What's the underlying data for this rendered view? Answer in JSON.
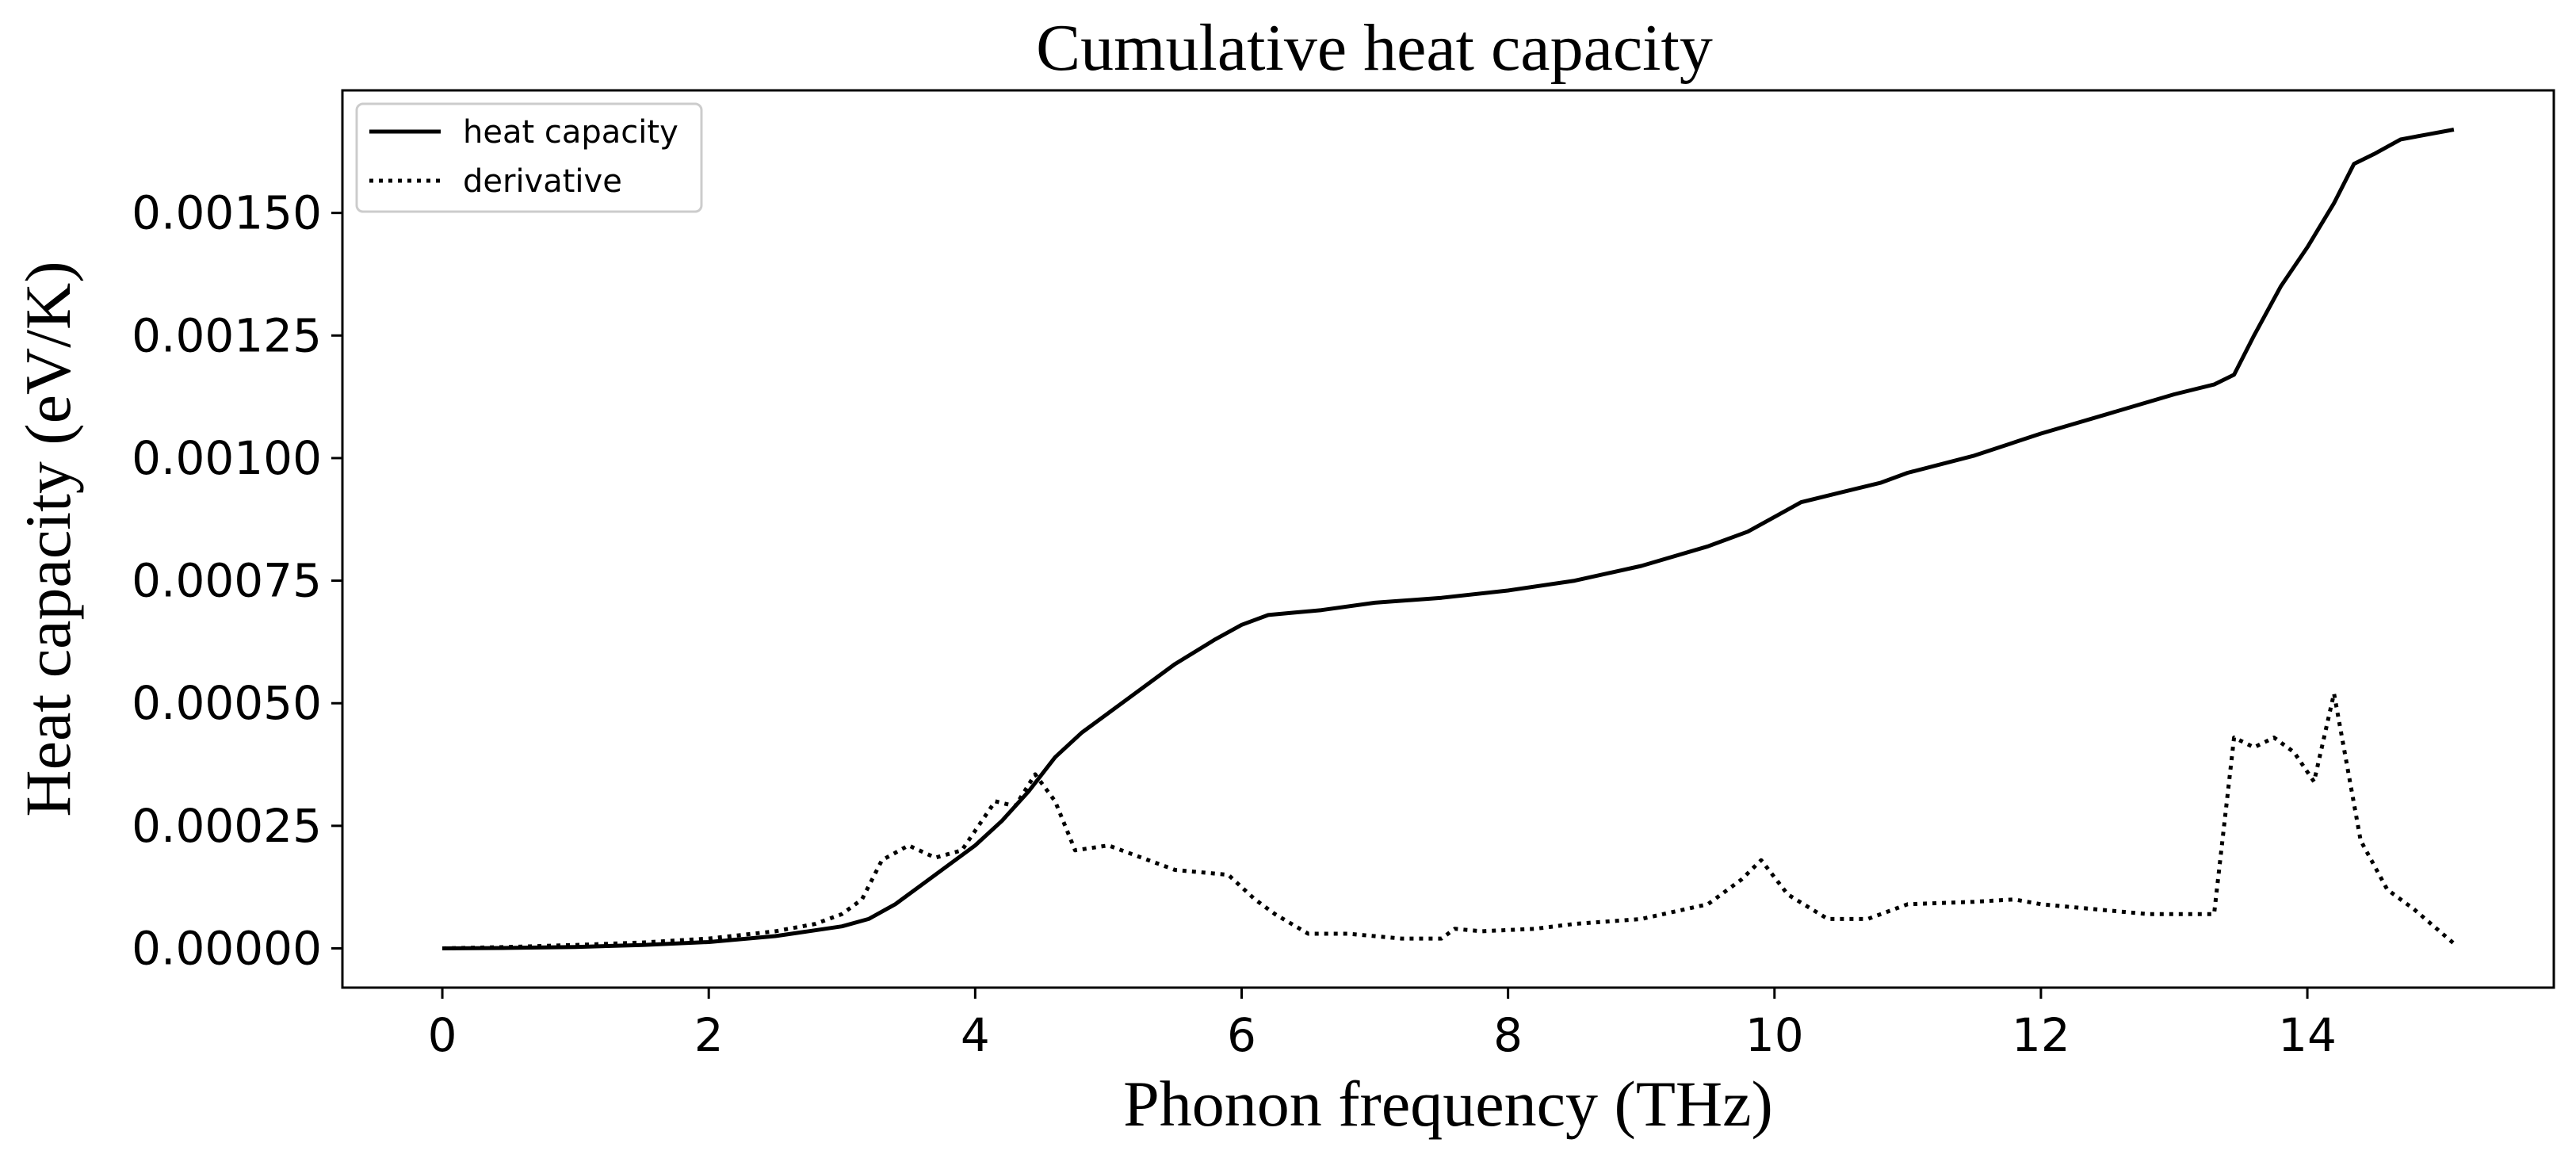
{
  "chart_data": {
    "type": "line",
    "title": "Cumulative heat capacity",
    "xlabel": "Phonon frequency (THz)",
    "ylabel": "Heat capacity (eV/K)",
    "xlim": [
      -0.75,
      15.85
    ],
    "ylim": [
      -8e-05,
      0.00175
    ],
    "xticks": [
      0,
      2,
      4,
      6,
      8,
      10,
      12,
      14
    ],
    "xtick_labels": [
      "0",
      "2",
      "4",
      "6",
      "8",
      "10",
      "12",
      "14"
    ],
    "yticks": [
      0,
      0.00025,
      0.0005,
      0.00075,
      0.001,
      0.00125,
      0.0015
    ],
    "ytick_labels": [
      "0.00000",
      "0.00025",
      "0.00050",
      "0.00075",
      "0.00100",
      "0.00125",
      "0.00150"
    ],
    "grid": false,
    "legend_position": "top-left",
    "colors": {
      "line": "#000000",
      "axes": "#000000",
      "background": "#ffffff",
      "legend_border": "#cccccc"
    },
    "series": [
      {
        "name": "heat capacity",
        "style": "solid",
        "x": [
          0,
          0.5,
          1.0,
          1.5,
          2.0,
          2.5,
          3.0,
          3.2,
          3.4,
          3.6,
          3.8,
          4.0,
          4.2,
          4.4,
          4.6,
          4.8,
          5.0,
          5.2,
          5.5,
          5.8,
          6.0,
          6.2,
          6.4,
          6.6,
          7.0,
          7.5,
          8.0,
          8.5,
          9.0,
          9.5,
          9.8,
          10.0,
          10.2,
          10.5,
          10.8,
          11.0,
          11.5,
          12.0,
          12.5,
          13.0,
          13.3,
          13.45,
          13.6,
          13.8,
          14.0,
          14.2,
          14.35,
          14.5,
          14.7,
          14.9,
          15.1
        ],
        "y": [
          0,
          1e-06,
          3e-06,
          7e-06,
          1.3e-05,
          2.5e-05,
          4.5e-05,
          6e-05,
          9e-05,
          0.00013,
          0.00017,
          0.00021,
          0.00026,
          0.00032,
          0.00039,
          0.00044,
          0.00048,
          0.00052,
          0.00058,
          0.00063,
          0.00066,
          0.00068,
          0.000685,
          0.00069,
          0.000705,
          0.000715,
          0.00073,
          0.00075,
          0.00078,
          0.00082,
          0.00085,
          0.00088,
          0.00091,
          0.00093,
          0.00095,
          0.00097,
          0.001005,
          0.00105,
          0.00109,
          0.00113,
          0.00115,
          0.00117,
          0.00125,
          0.00135,
          0.00143,
          0.00152,
          0.0016,
          0.00162,
          0.00165,
          0.00166,
          0.00167
        ]
      },
      {
        "name": "derivative",
        "style": "dotted",
        "x": [
          0,
          0.5,
          1.0,
          1.5,
          2.0,
          2.5,
          2.8,
          3.0,
          3.15,
          3.3,
          3.5,
          3.7,
          3.9,
          4.0,
          4.15,
          4.3,
          4.45,
          4.6,
          4.75,
          5.0,
          5.2,
          5.5,
          5.9,
          6.1,
          6.25,
          6.5,
          6.8,
          7.2,
          7.5,
          7.6,
          7.8,
          8.2,
          8.5,
          9.0,
          9.5,
          9.75,
          9.9,
          10.1,
          10.4,
          10.7,
          11.0,
          11.5,
          11.8,
          12.0,
          12.4,
          12.8,
          13.0,
          13.3,
          13.45,
          13.6,
          13.75,
          13.9,
          14.05,
          14.2,
          14.4,
          14.6,
          14.8,
          15.1
        ],
        "y": [
          0,
          3e-06,
          7e-06,
          1.2e-05,
          2e-05,
          3.5e-05,
          5e-05,
          7e-05,
          0.0001,
          0.00018,
          0.00021,
          0.000185,
          0.0002,
          0.00024,
          0.0003,
          0.00029,
          0.000355,
          0.0003,
          0.0002,
          0.00021,
          0.00019,
          0.00016,
          0.00015,
          0.0001,
          7e-05,
          3e-05,
          3e-05,
          2e-05,
          2e-05,
          4e-05,
          3.5e-05,
          4e-05,
          5e-05,
          6e-05,
          9e-05,
          0.00014,
          0.00018,
          0.00011,
          6e-05,
          6e-05,
          9e-05,
          9.5e-05,
          0.0001,
          9e-05,
          8e-05,
          7e-05,
          7e-05,
          7e-05,
          0.00043,
          0.00041,
          0.00043,
          0.0004,
          0.00034,
          0.00052,
          0.00022,
          0.00012,
          8e-05,
          1e-05
        ]
      }
    ]
  }
}
